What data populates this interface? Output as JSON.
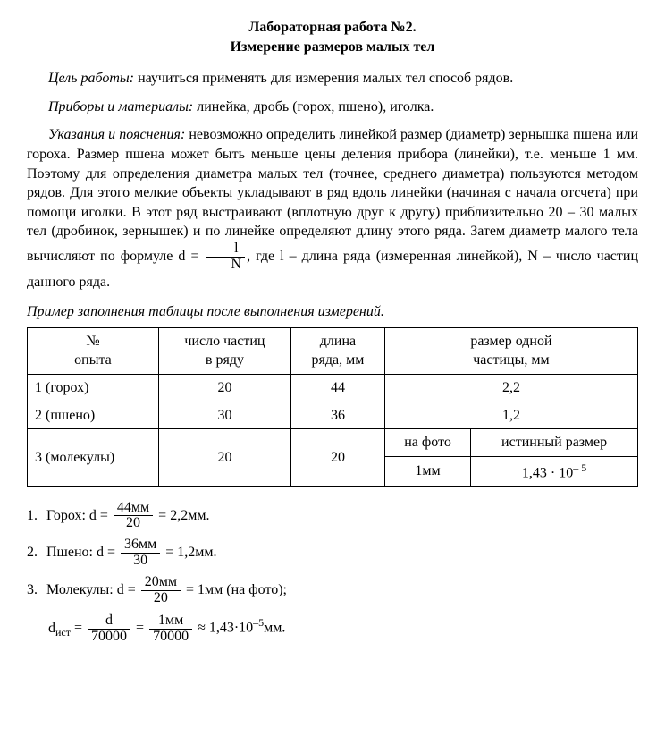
{
  "title": {
    "line1": "Лабораторная работа №2.",
    "line2": "Измерение размеров малых тел"
  },
  "goal": {
    "label": "Цель работы:",
    "text": " научиться применять для измерения малых тел способ рядов."
  },
  "materials": {
    "label": "Приборы и материалы:",
    "text": " линейка, дробь (горох, пшено), иголка."
  },
  "instructions": {
    "label": "Указания и пояснения:",
    "text1": " невозможно определить линейкой размер (диаметр) зернышка пшена или гороха. Размер пшена может быть меньше цены деления прибора (линейки), т.е. меньше 1 мм. Поэтому для определения диаметра малых тел (точнее, среднего диаметра) пользуются методом рядов. Для этого мелкие объекты укладывают в ряд вдоль линейки (начиная с начала отсчета) при помощи иголки. В этот ряд выстраивают (вплотную друг к другу) приблизительно 20 – 30 малых тел (дробинок, зернышек) и по линейке определяют длину этого ряда. Затем диаметр малого тела вычисляют по формуле ",
    "formula": {
      "lhs": "d =",
      "num": "l",
      "den": "N"
    },
    "text2": ", где l – длина ряда (измеренная линейкой), N – число частиц данного ряда."
  },
  "example_caption": "Пример заполнения таблицы после выполнения измерений.",
  "table": {
    "headers": {
      "c1a": "№",
      "c1b": "опыта",
      "c2a": "число частиц",
      "c2b": "в ряду",
      "c3a": "длина",
      "c3b": "ряда, мм",
      "c4a": "размер одной",
      "c4b": "частицы, мм"
    },
    "rows": [
      {
        "name": "1 (горох)",
        "n": "20",
        "l": "44",
        "d": "2,2"
      },
      {
        "name": "2 (пшено)",
        "n": "30",
        "l": "36",
        "d": "1,2"
      }
    ],
    "row3": {
      "name": "3 (молекулы)",
      "n": "20",
      "l": "20",
      "d_photo_label": "на фото",
      "d_true_label": "истинный размер",
      "d_photo": "1мм",
      "d_true": "1,43 · 10",
      "d_true_exp": "– 5"
    }
  },
  "calc": {
    "item1": {
      "n": "1.",
      "label": "Горох: ",
      "lhs": "d =",
      "num": "44мм",
      "den": "20",
      "res": "= 2,2мм."
    },
    "item2": {
      "n": "2.",
      "label": "Пшено: ",
      "lhs": "d =",
      "num": "36мм",
      "den": "30",
      "res": "= 1,2мм."
    },
    "item3": {
      "n": "3.",
      "label": "Молекулы: ",
      "lhs": "d =",
      "num": "20мм",
      "den": "20",
      "res": "= 1мм  (на фото);"
    },
    "item3b": {
      "lhs1": "d",
      "lhs1_sub": "ист",
      "eq1": " =",
      "num1": "d",
      "den1": "70000",
      "eq2": "=",
      "num2": "1мм",
      "den2": "70000",
      "approx": "≈ 1,43·10",
      "exp": "–5",
      "tail": "мм."
    }
  }
}
